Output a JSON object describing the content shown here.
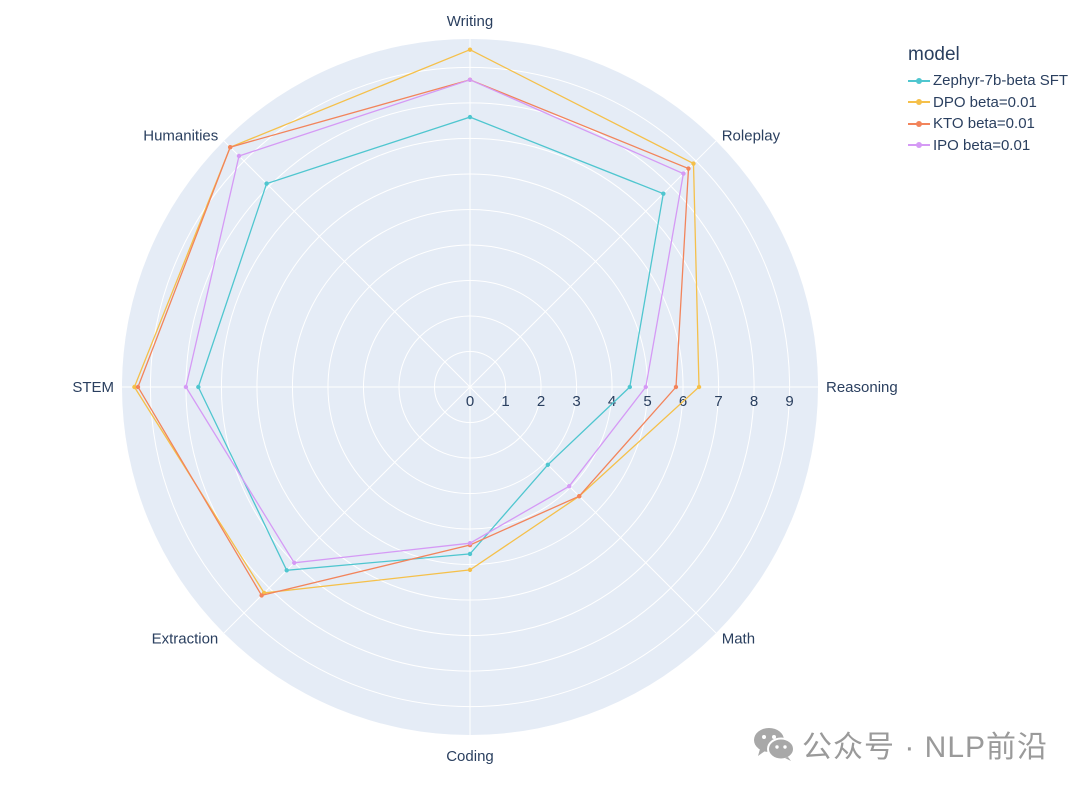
{
  "chart_data": {
    "type": "radar",
    "categories": [
      "Writing",
      "Roleplay",
      "Reasoning",
      "Math",
      "Coding",
      "Extraction",
      "STEM",
      "Humanities"
    ],
    "radial_ticks": [
      "0",
      "1",
      "2",
      "3",
      "4",
      "5",
      "6",
      "7",
      "8",
      "9"
    ],
    "radial_range": [
      0,
      9.8
    ],
    "legend_title": "model",
    "series": [
      {
        "name": "Zephyr-7b-beta SFT",
        "color": "#4fc6cf",
        "values": [
          7.6,
          7.7,
          4.5,
          3.1,
          4.7,
          7.3,
          7.65,
          8.1
        ]
      },
      {
        "name": "DPO beta=0.01",
        "color": "#f5c04a",
        "values": [
          9.5,
          8.9,
          6.45,
          4.35,
          5.15,
          8.2,
          9.45,
          9.55
        ]
      },
      {
        "name": "KTO beta=0.01",
        "color": "#f2845b",
        "values": [
          8.65,
          8.7,
          5.8,
          4.35,
          4.45,
          8.3,
          9.35,
          9.55
        ]
      },
      {
        "name": "IPO beta=0.01",
        "color": "#d59af5",
        "values": [
          8.65,
          8.5,
          4.95,
          3.95,
          4.4,
          7.0,
          8.0,
          9.2
        ]
      }
    ]
  },
  "watermark": {
    "text": "公众号 · NLP前沿",
    "icon": "wechat-icon"
  }
}
